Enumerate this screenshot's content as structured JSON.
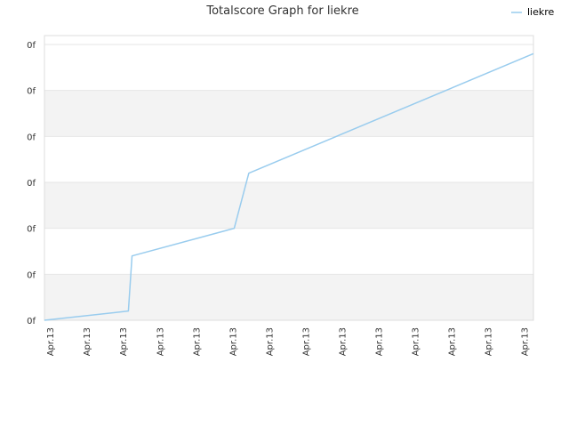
{
  "chart_data": {
    "type": "line",
    "title": "Totalscore Graph for liekre",
    "xlabel": "",
    "ylabel": "",
    "categories": [
      "Apr.13",
      "Apr.13",
      "Apr.13",
      "Apr.13",
      "Apr.13",
      "Apr.13",
      "Apr.13",
      "Apr.13",
      "Apr.13",
      "Apr.13",
      "Apr.13",
      "Apr.13",
      "Apr.13",
      "Apr.13"
    ],
    "y_tick_labels": [
      "0f",
      "0f",
      "0f",
      "0f",
      "0f",
      "0f",
      "0f"
    ],
    "x": [
      0,
      1.15,
      1.2,
      2.6,
      2.8,
      6.7
    ],
    "ylim": [
      0,
      6
    ],
    "xlim": [
      0,
      6.7
    ],
    "series": [
      {
        "name": "liekre",
        "values": [
          0,
          0.2,
          1.4,
          2.0,
          3.2,
          5.8
        ],
        "color": "#99ccee"
      }
    ],
    "grid": true,
    "legend": "top-right",
    "band_colors": [
      "#f3f3f3",
      "#ffffff"
    ],
    "axis_color": "#dddddd"
  }
}
